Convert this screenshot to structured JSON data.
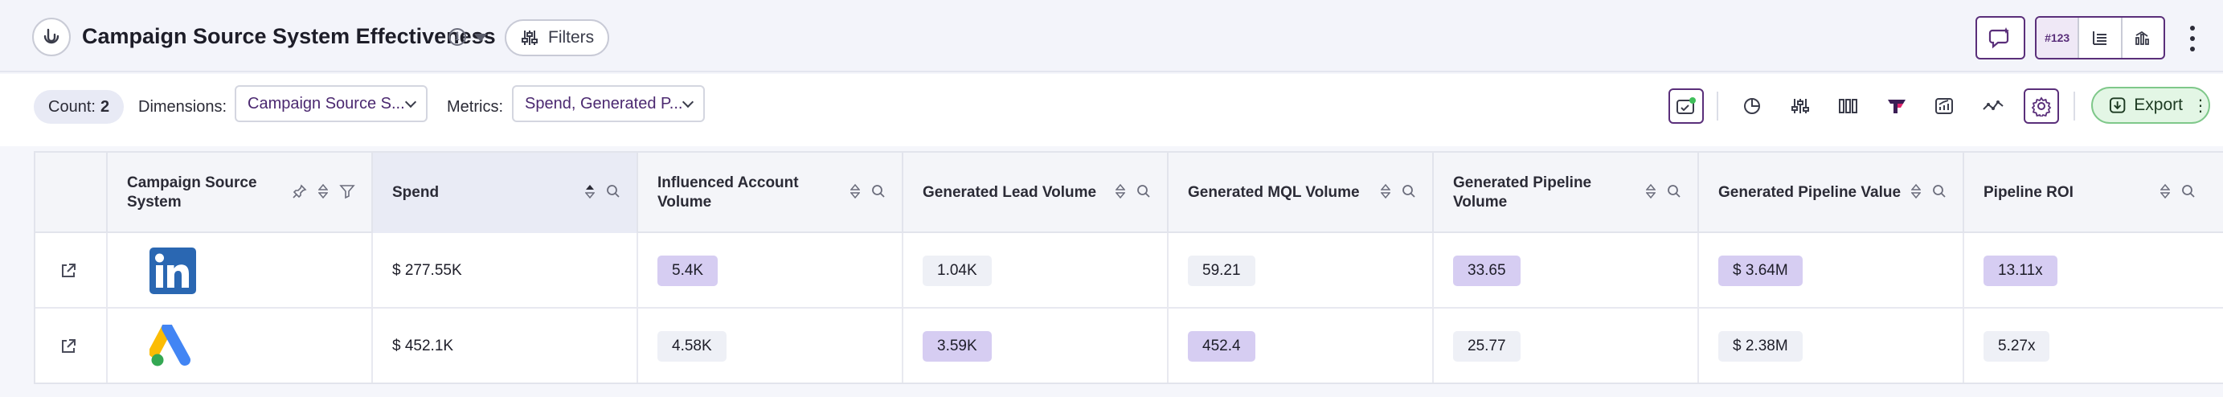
{
  "header": {
    "title": "Campaign Source System Effectiveness",
    "filters_label": "Filters",
    "view_toggle": [
      "#123",
      "table-icon",
      "chart-icon"
    ],
    "info_glyph": "i"
  },
  "toolbar": {
    "count_label": "Count:",
    "count_value": "2",
    "dimensions_label": "Dimensions:",
    "dimensions_value": "Campaign Source S...",
    "metrics_label": "Metrics:",
    "metrics_value": "Spend, Generated P...",
    "export_label": "Export"
  },
  "table": {
    "columns": [
      "",
      "Campaign Source System",
      "Spend",
      "Influenced Account Volume",
      "Generated Lead Volume",
      "Generated MQL Volume",
      "Generated Pipeline Volume",
      "Generated Pipeline Value",
      "Pipeline ROI"
    ],
    "rows": [
      {
        "source_icon": "linkedin-logo",
        "spend": "$ 277.55K",
        "influenced": "5.4K",
        "leads": "1.04K",
        "mql": "59.21",
        "pipeline_volume": "33.65",
        "pipeline_value": "$ 3.64M",
        "roi": "13.11x"
      },
      {
        "source_icon": "google-ads-logo",
        "spend": "$ 452.1K",
        "influenced": "4.58K",
        "leads": "3.59K",
        "mql": "452.4",
        "pipeline_volume": "25.77",
        "pipeline_value": "$ 2.38M",
        "roi": "5.27x"
      }
    ]
  },
  "colors": {
    "accent": "#5a2f7a",
    "highlight_chip": "#d6cdf2",
    "neutral_chip": "#eef0f6",
    "export_bg": "#e3f6e5"
  }
}
